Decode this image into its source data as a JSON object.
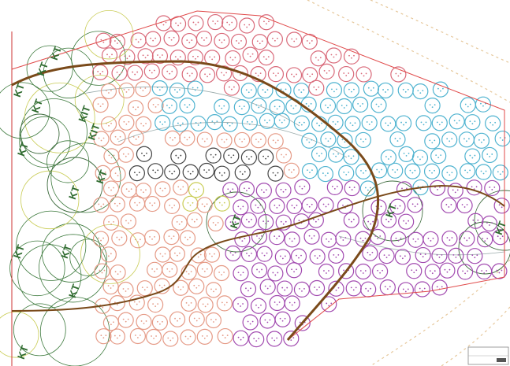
{
  "labels": [
    "KT",
    "KT",
    "KT",
    "KT",
    "KIT",
    "KT",
    "KT",
    "KT",
    "KT",
    "KT",
    "KT",
    "KT",
    "KT",
    "KT",
    "KT",
    "KIT"
  ]
}
